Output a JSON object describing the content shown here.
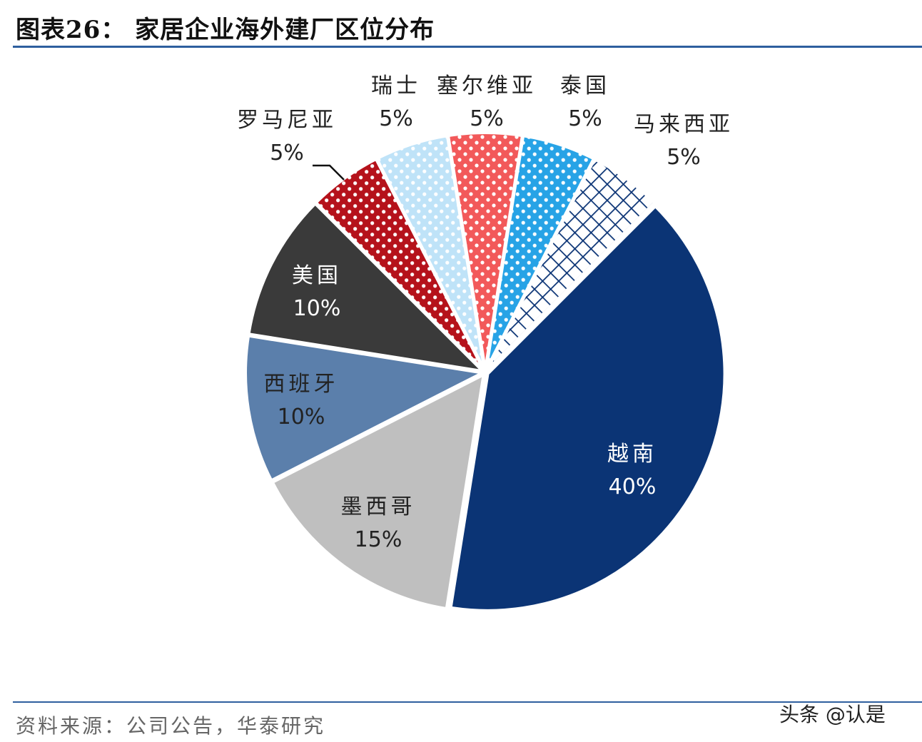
{
  "title": "图表26： 家居企业海外建厂区位分布",
  "source": "资料来源：公司公告，华泰研究",
  "watermark": "头条 @认是",
  "chart_data": {
    "type": "pie",
    "title": "图表26： 家居企业海外建厂区位分布",
    "start_angle_deg": -9,
    "direction": "clockwise",
    "slices": [
      {
        "label": "塞尔维亚",
        "value": 5,
        "value_label": "5%",
        "color": "#f2595a",
        "pattern": "dots"
      },
      {
        "label": "泰国",
        "value": 5,
        "value_label": "5%",
        "color": "#27a3e6",
        "pattern": "dots"
      },
      {
        "label": "马来西亚",
        "value": 5,
        "value_label": "5%",
        "color": "#0b3475",
        "pattern": "crosshatch"
      },
      {
        "label": "越南",
        "value": 40,
        "value_label": "40%",
        "color": "#0b3475",
        "pattern": "solid"
      },
      {
        "label": "墨西哥",
        "value": 15,
        "value_label": "15%",
        "color": "#bfbfbf",
        "pattern": "solid"
      },
      {
        "label": "西班牙",
        "value": 10,
        "value_label": "10%",
        "color": "#5b7fab",
        "pattern": "solid"
      },
      {
        "label": "美国",
        "value": 10,
        "value_label": "10%",
        "color": "#3a3a3a",
        "pattern": "solid"
      },
      {
        "label": "罗马尼亚",
        "value": 5,
        "value_label": "5%",
        "color": "#b5121b",
        "pattern": "dots"
      },
      {
        "label": "瑞士",
        "value": 5,
        "value_label": "5%",
        "color": "#bfe3f8",
        "pattern": "dots"
      }
    ]
  }
}
